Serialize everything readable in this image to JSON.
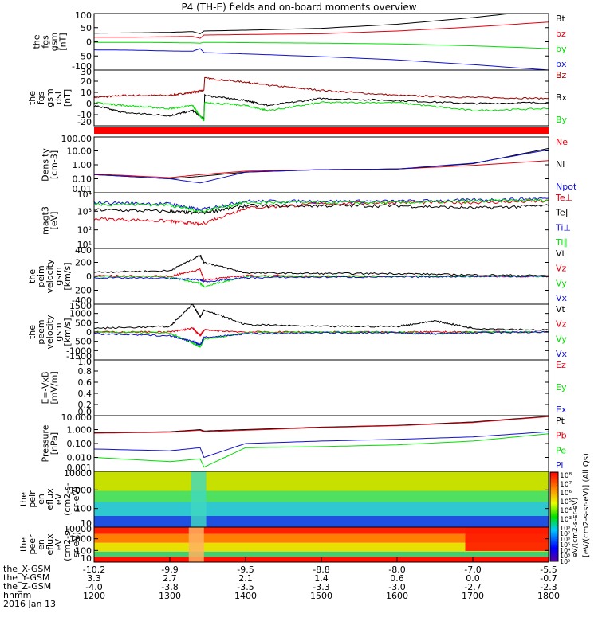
{
  "title": "P4 (TH-E) fields and on-board moments overview",
  "colors": {
    "black": "#000000",
    "red": "#e0000f",
    "green": "#00dd00",
    "blue": "#1010d0",
    "dark_red": "#a00000"
  },
  "chart_data": [
    {
      "type": "line",
      "panel": "fgs_gsm",
      "ylabel_lines": [
        "the",
        "fgs",
        "gsm",
        "[nT]"
      ],
      "yticks": [
        "100",
        "50",
        "0",
        "-50",
        "-100"
      ],
      "ylim": [
        -100,
        110
      ],
      "legend": [
        {
          "name": "Bt",
          "color": "#000000"
        },
        {
          "name": "bz",
          "color": "#e0000f"
        },
        {
          "name": "by",
          "color": "#00dd00"
        },
        {
          "name": "bx",
          "color": "#1010d0"
        }
      ],
      "series": [
        {
          "name": "Bt",
          "x": [
            1200,
            1250,
            1300,
            1330,
            1340,
            1345,
            1400,
            1500,
            1600,
            1700,
            1800
          ],
          "y": [
            37,
            38,
            40,
            43,
            35,
            45,
            48,
            55,
            70,
            95,
            125
          ]
        },
        {
          "name": "bz",
          "x": [
            1200,
            1250,
            1300,
            1330,
            1340,
            1345,
            1400,
            1500,
            1600,
            1700,
            1800
          ],
          "y": [
            22,
            22,
            24,
            25,
            18,
            30,
            32,
            35,
            45,
            60,
            78
          ]
        },
        {
          "name": "by",
          "x": [
            1200,
            1250,
            1300,
            1330,
            1340,
            1345,
            1400,
            1500,
            1600,
            1700,
            1800
          ],
          "y": [
            3,
            3,
            2,
            1,
            0,
            3,
            2,
            0,
            -3,
            -10,
            -20
          ]
        },
        {
          "name": "bx",
          "x": [
            1200,
            1250,
            1300,
            1330,
            1340,
            1345,
            1400,
            1500,
            1600,
            1700,
            1800
          ],
          "y": [
            -25,
            -26,
            -29,
            -30,
            -20,
            -35,
            -40,
            -50,
            -62,
            -80,
            -100
          ]
        }
      ]
    },
    {
      "type": "line",
      "panel": "fgs_dsl",
      "ylabel_lines": [
        "the",
        "fgs",
        "gsm",
        "dsl",
        "[nT]"
      ],
      "yticks": [
        "30",
        "20",
        "10",
        "0",
        "-10",
        "-20"
      ],
      "ylim": [
        -25,
        30
      ],
      "legend": [
        {
          "name": "Bz",
          "color": "#a00000"
        },
        {
          "name": "Bx",
          "color": "#000000"
        },
        {
          "name": "By",
          "color": "#00dd00"
        }
      ],
      "series": [
        {
          "name": "Bz",
          "x": [
            1200,
            1240,
            1300,
            1330,
            1345,
            1346,
            1400,
            1430,
            1500,
            1600,
            1700,
            1800
          ],
          "y": [
            3,
            5,
            5,
            8,
            10,
            22,
            18,
            15,
            10,
            5,
            3,
            2
          ]
        },
        {
          "name": "Bx",
          "x": [
            1200,
            1240,
            1300,
            1330,
            1345,
            1346,
            1400,
            1430,
            1500,
            1600,
            1700,
            1800
          ],
          "y": [
            -5,
            -12,
            -15,
            -10,
            -18,
            5,
            0,
            -5,
            2,
            0,
            -3,
            -2
          ]
        },
        {
          "name": "By",
          "x": [
            1200,
            1240,
            1300,
            1330,
            1345,
            1346,
            1400,
            1430,
            1500,
            1600,
            1700,
            1800
          ],
          "y": [
            -2,
            -5,
            -8,
            -5,
            -20,
            -2,
            -5,
            -10,
            -2,
            -2,
            -10,
            -8
          ]
        }
      ]
    },
    {
      "type": "line",
      "panel": "density",
      "ylabel_lines": [
        "Density",
        "[cm-3]"
      ],
      "yticks": [
        "100.00",
        "10.00",
        "1.00",
        "0.10",
        "0.01"
      ],
      "yscale": "log",
      "ylim": [
        0.01,
        100
      ],
      "legend": [
        {
          "name": "Ne",
          "color": "#e0000f"
        },
        {
          "name": "Ni",
          "color": "#000000"
        },
        {
          "name": "Npot",
          "color": "#1010d0"
        }
      ],
      "series": [
        {
          "name": "Ne",
          "x": [
            1200,
            1300,
            1340,
            1400,
            1500,
            1600,
            1700,
            1800
          ],
          "y": [
            0.22,
            0.12,
            0.2,
            0.35,
            0.45,
            0.5,
            0.9,
            2.0
          ]
        },
        {
          "name": "Ni",
          "x": [
            1200,
            1300,
            1340,
            1400,
            1500,
            1600,
            1700,
            1800
          ],
          "y": [
            0.2,
            0.1,
            0.15,
            0.3,
            0.45,
            0.5,
            1.2,
            15
          ]
        },
        {
          "name": "Npot",
          "x": [
            1200,
            1300,
            1340,
            1400,
            1500,
            1600,
            1700,
            1800
          ],
          "y": [
            0.2,
            0.1,
            0.05,
            0.3,
            0.45,
            0.5,
            1.3,
            12
          ]
        }
      ]
    },
    {
      "type": "line",
      "panel": "temperature",
      "ylabel_lines": [
        "magt3",
        "[eV]"
      ],
      "yticks": [
        "10⁴",
        "10³",
        "10²",
        "10¹"
      ],
      "yscale": "log",
      "ylim": [
        10,
        10000
      ],
      "legend": [
        {
          "name": "Te⊥",
          "color": "#e0000f"
        },
        {
          "name": "Te∥",
          "color": "#000000"
        },
        {
          "name": "Ti⊥",
          "color": "#1010d0"
        },
        {
          "name": "Ti∥",
          "color": "#00dd00"
        }
      ],
      "series": [
        {
          "name": "Te⊥",
          "x": [
            1200,
            1300,
            1340,
            1400,
            1500,
            1600,
            1700,
            1800
          ],
          "y": [
            400,
            300,
            200,
            1500,
            2500,
            3000,
            3000,
            3500
          ]
        },
        {
          "name": "Te∥",
          "x": [
            1200,
            1300,
            1340,
            1400,
            1500,
            1600,
            1700,
            1800
          ],
          "y": [
            1200,
            1000,
            800,
            2000,
            2000,
            2000,
            1500,
            2000
          ]
        },
        {
          "name": "Ti⊥",
          "x": [
            1200,
            1300,
            1340,
            1400,
            1500,
            1600,
            1700,
            1800
          ],
          "y": [
            3000,
            2500,
            1200,
            3500,
            3500,
            3500,
            4000,
            5000
          ]
        },
        {
          "name": "Ti∥",
          "x": [
            1200,
            1300,
            1340,
            1400,
            1500,
            1600,
            1700,
            1800
          ],
          "y": [
            2500,
            2200,
            1000,
            3000,
            3000,
            3000,
            3500,
            4000
          ]
        }
      ]
    },
    {
      "type": "line",
      "panel": "ion_velocity",
      "ylabel_lines": [
        "the",
        "peim",
        "velocity",
        "gsm",
        "[km/s]"
      ],
      "yticks": [
        "400",
        "200",
        "0",
        "-200",
        "-400"
      ],
      "ylim": [
        -400,
        400
      ],
      "legend": [
        {
          "name": "Vt",
          "color": "#000000"
        },
        {
          "name": "Vz",
          "color": "#e0000f"
        },
        {
          "name": "Vy",
          "color": "#00dd00"
        },
        {
          "name": "Vx",
          "color": "#1010d0"
        }
      ],
      "series": [
        {
          "name": "Vt",
          "x": [
            1200,
            1300,
            1340,
            1345,
            1400,
            1500,
            1600,
            1700,
            1800
          ],
          "y": [
            60,
            80,
            300,
            200,
            50,
            40,
            40,
            20,
            10
          ]
        },
        {
          "name": "Vz",
          "x": [
            1200,
            1300,
            1340,
            1345,
            1400,
            1500,
            1600,
            1700,
            1800
          ],
          "y": [
            10,
            0,
            100,
            -50,
            10,
            0,
            0,
            0,
            0
          ]
        },
        {
          "name": "Vy",
          "x": [
            1200,
            1300,
            1340,
            1345,
            1400,
            1500,
            1600,
            1700,
            1800
          ],
          "y": [
            0,
            -10,
            -100,
            -150,
            0,
            0,
            0,
            0,
            0
          ]
        },
        {
          "name": "Vx",
          "x": [
            1200,
            1300,
            1340,
            1345,
            1400,
            1500,
            1600,
            1700,
            1800
          ],
          "y": [
            -20,
            -30,
            -50,
            -80,
            -20,
            -10,
            -10,
            0,
            0
          ]
        }
      ]
    },
    {
      "type": "line",
      "panel": "electron_velocity",
      "ylabel_lines": [
        "the",
        "peem",
        "velocity",
        "gsm",
        "[km/s]"
      ],
      "yticks": [
        "1500",
        "1000",
        "500",
        "0",
        "-500",
        "-1000",
        "-1500"
      ],
      "ylim": [
        -1500,
        1500
      ],
      "legend": [
        {
          "name": "Vt",
          "color": "#000000"
        },
        {
          "name": "Vz",
          "color": "#e0000f"
        },
        {
          "name": "Vy",
          "color": "#00dd00"
        },
        {
          "name": "Vx",
          "color": "#1010d0"
        }
      ],
      "series": [
        {
          "name": "Vt",
          "x": [
            1200,
            1300,
            1330,
            1340,
            1345,
            1400,
            1500,
            1600,
            1650,
            1700,
            1800
          ],
          "y": [
            200,
            300,
            1500,
            800,
            1200,
            400,
            300,
            300,
            600,
            200,
            100
          ]
        },
        {
          "name": "Vz",
          "x": [
            1200,
            1300,
            1330,
            1340,
            1345,
            1400,
            1500,
            1600,
            1650,
            1700,
            1800
          ],
          "y": [
            0,
            0,
            200,
            -200,
            100,
            0,
            0,
            0,
            0,
            0,
            0
          ]
        },
        {
          "name": "Vy",
          "x": [
            1200,
            1300,
            1330,
            1340,
            1345,
            1400,
            1500,
            1600,
            1650,
            1700,
            1800
          ],
          "y": [
            0,
            -50,
            -600,
            -800,
            -400,
            -50,
            0,
            0,
            -100,
            0,
            0
          ]
        },
        {
          "name": "Vx",
          "x": [
            1200,
            1300,
            1330,
            1340,
            1345,
            1400,
            1500,
            1600,
            1650,
            1700,
            1800
          ],
          "y": [
            -100,
            -200,
            -500,
            -700,
            -300,
            -100,
            -50,
            -50,
            -100,
            -50,
            0
          ]
        }
      ]
    },
    {
      "type": "line",
      "panel": "efield",
      "ylabel_lines": [
        "E=-VxB",
        "[mV/m]"
      ],
      "yticks": [
        "1.0",
        "0.8",
        "0.6",
        "0.4",
        "0.2",
        "0.0"
      ],
      "ylim": [
        0,
        1.0
      ],
      "legend": [
        {
          "name": "Ez",
          "color": "#e0000f"
        },
        {
          "name": "Ey",
          "color": "#00dd00"
        },
        {
          "name": "Ex",
          "color": "#1010d0"
        }
      ],
      "series": []
    },
    {
      "type": "line",
      "panel": "pressure",
      "ylabel_lines": [
        "Pressure",
        "[nPa]"
      ],
      "yticks": [
        "10.000",
        "1.000",
        "0.100",
        "0.010",
        "0.001"
      ],
      "yscale": "log",
      "ylim": [
        0.001,
        10
      ],
      "legend": [
        {
          "name": "Pt",
          "color": "#000000"
        },
        {
          "name": "Pb",
          "color": "#e0000f"
        },
        {
          "name": "Pe",
          "color": "#00dd00"
        },
        {
          "name": "Pi",
          "color": "#1010d0"
        }
      ],
      "series": [
        {
          "name": "Pt",
          "x": [
            1200,
            1300,
            1340,
            1345,
            1400,
            1500,
            1600,
            1700,
            1800
          ],
          "y": [
            0.6,
            0.7,
            1.0,
            0.8,
            1.0,
            1.5,
            2.0,
            3.5,
            9.0
          ]
        },
        {
          "name": "Pb",
          "x": [
            1200,
            1300,
            1340,
            1345,
            1400,
            1500,
            1600,
            1700,
            1800
          ],
          "y": [
            0.55,
            0.65,
            0.9,
            0.7,
            0.9,
            1.4,
            1.9,
            3.2,
            8.5
          ]
        },
        {
          "name": "Pe",
          "x": [
            1200,
            1300,
            1340,
            1345,
            1400,
            1500,
            1600,
            1700,
            1800
          ],
          "y": [
            0.01,
            0.005,
            0.008,
            0.002,
            0.05,
            0.06,
            0.08,
            0.15,
            0.5
          ]
        },
        {
          "name": "Pi",
          "x": [
            1200,
            1300,
            1340,
            1345,
            1400,
            1500,
            1600,
            1700,
            1800
          ],
          "y": [
            0.04,
            0.03,
            0.05,
            0.01,
            0.1,
            0.15,
            0.2,
            0.3,
            0.7
          ]
        }
      ]
    },
    {
      "type": "heatmap",
      "panel": "ion_spectrogram",
      "ylabel_lines": [
        "the",
        "peir",
        "en",
        "eflux",
        "eV",
        "(cm2-s-",
        "sr-eV)"
      ],
      "yticks": [
        "10000",
        "1000",
        "100",
        "10"
      ],
      "yscale": "log",
      "ylim": [
        5,
        30000
      ],
      "colorbar_ticks": [
        "10⁸",
        "10⁷",
        "10⁶",
        "10⁵",
        "10⁴",
        "10³"
      ]
    },
    {
      "type": "heatmap",
      "panel": "electron_spectrogram",
      "ylabel_lines": [
        "the",
        "peer",
        "en",
        "eflux",
        "eV",
        "(cm2-s-",
        "sr-eV)"
      ],
      "yticks": [
        "10000",
        "1000",
        "100",
        "10"
      ],
      "yscale": "log",
      "ylim": [
        5,
        30000
      ],
      "colorbar_ticks": [
        "10⁸",
        "10⁷",
        "10⁶",
        "10⁵",
        "10⁴",
        "10³",
        "10²"
      ],
      "colorbar_label": "[eV/(cm2-s-sr-eV)] (All Qs)"
    }
  ],
  "colorbar_mid_label": "eV/(cm2-s-sr-eV)",
  "xaxis": {
    "hhmm": [
      "1200",
      "1300",
      "1400",
      "1500",
      "1600",
      "1700",
      "1800"
    ],
    "x_gsm": [
      "-10.2",
      "-9.9",
      "-9.5",
      "-8.8",
      "-8.0",
      "-7.0",
      "-5.5"
    ],
    "y_gsm": [
      "3.3",
      "2.7",
      "2.1",
      "1.4",
      "0.6",
      "0.0",
      "-0.7"
    ],
    "z_gsm": [
      "-4.0",
      "-3.8",
      "-3.5",
      "-3.3",
      "-3.0",
      "-2.7",
      "-2.3"
    ]
  },
  "footer": {
    "row_labels": [
      "the_X-GSM",
      "the_Y-GSM",
      "the_Z-GSM",
      "hhmm"
    ],
    "date": "2016 Jan 13"
  }
}
